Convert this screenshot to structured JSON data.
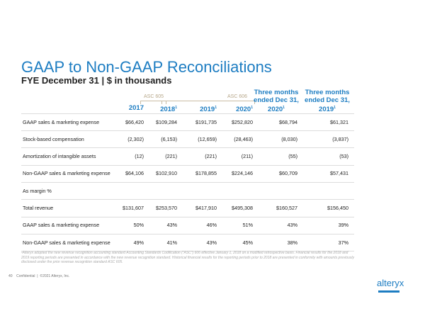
{
  "title": "GAAP to Non-GAAP Reconciliations",
  "subtitle": "FYE December 31 | $ in thousands",
  "asc605": "ASC 605",
  "asc606": "ASC 606",
  "columns": [
    "2017",
    "2018",
    "2019",
    "2020",
    "Three months ended Dec 31, 2020",
    "Three months ended Dec 31, 2019"
  ],
  "footnote_mark": "1",
  "rows": [
    {
      "label": "GAAP sales & marketing expense",
      "values": [
        "$66,420",
        "$109,284",
        "$191,735",
        "$252,820",
        "$68,794",
        "$61,321"
      ]
    },
    {
      "label": "Stock-based compensation",
      "values": [
        "(2,302)",
        "(6,153)",
        "(12,659)",
        "(28,463)",
        "(8,030)",
        "(3,837)"
      ]
    },
    {
      "label": "Amortization of intangible assets",
      "values": [
        "(12)",
        "(221)",
        "(221)",
        "(211)",
        "(55)",
        "(53)"
      ]
    },
    {
      "label": "Non-GAAP sales & marketing expense",
      "values": [
        "$64,106",
        "$102,910",
        "$178,855",
        "$224,146",
        "$60,709",
        "$57,431"
      ]
    },
    {
      "label": "As margin %",
      "values": [
        "",
        "",
        "",
        "",
        "",
        ""
      ]
    },
    {
      "label": "Total revenue",
      "values": [
        "$131,607",
        "$253,570",
        "$417,910",
        "$495,308",
        "$160,527",
        "$156,450"
      ]
    },
    {
      "label": "GAAP sales & marketing expense",
      "values": [
        "50%",
        "43%",
        "46%",
        "51%",
        "43%",
        "39%"
      ]
    },
    {
      "label": "Non-GAAP sales & marketing expense",
      "values": [
        "49%",
        "41%",
        "43%",
        "45%",
        "38%",
        "37%"
      ]
    }
  ],
  "footnote": "¹Alteryx adopted the new revenue recognition accounting standard Accounting Standards Codification (\"ASC\") 606 effective January 1, 2018 on a modified retrospective basis. Financial results for the 2018 and 2019 reporting periods are presented in accordance with the new revenue recognition standard. Historical financial results for the reporting periods prior to 2018 are presented in conformity with amounts previously disclosed under the prior revenue recognition standard ASC 605.",
  "footer": {
    "page": "40",
    "confidential": "Confidential",
    "copyright": "©2021 Alteryx, Inc."
  },
  "logo": "alteryx"
}
